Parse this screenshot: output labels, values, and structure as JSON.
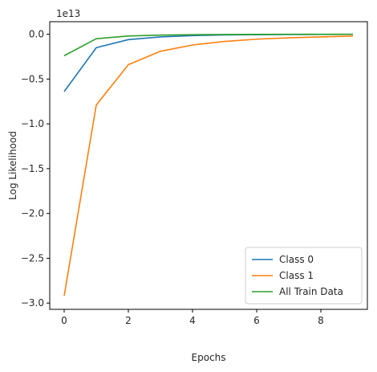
{
  "chart_data": {
    "type": "line",
    "xlabel": "Epochs",
    "ylabel": "Log Likelihood",
    "y_offset_label": "1e13",
    "xlim": [
      -0.45,
      9.45
    ],
    "ylim": [
      -3.07,
      0.14
    ],
    "x_ticks": [
      0,
      2,
      4,
      6,
      8
    ],
    "x_tick_labels": [
      "0",
      "2",
      "4",
      "6",
      "8"
    ],
    "y_ticks": [
      0.0,
      -0.5,
      -1.0,
      -1.5,
      -2.0,
      -2.5,
      -3.0
    ],
    "y_tick_labels": [
      "0.0",
      "−0.5",
      "−1.0",
      "−1.5",
      "−2.0",
      "−2.5",
      "−3.0"
    ],
    "x": [
      0,
      1,
      2,
      3,
      4,
      5,
      6,
      7,
      8,
      9
    ],
    "series": [
      {
        "name": "Class 0",
        "color": "#1f77b4",
        "values": [
          -0.64,
          -0.15,
          -0.06,
          -0.03,
          -0.015,
          -0.008,
          -0.005,
          -0.003,
          -0.002,
          -0.001
        ]
      },
      {
        "name": "Class 1",
        "color": "#ff7f0e",
        "values": [
          -2.92,
          -0.79,
          -0.34,
          -0.19,
          -0.12,
          -0.08,
          -0.055,
          -0.04,
          -0.03,
          -0.02
        ]
      },
      {
        "name": "All Train Data",
        "color": "#2ca02c",
        "values": [
          -0.24,
          -0.05,
          -0.02,
          -0.01,
          -0.005,
          -0.003,
          -0.002,
          -0.001,
          -0.001,
          -0.0005
        ]
      }
    ],
    "grid": false,
    "legend_position": "bottom-right"
  }
}
